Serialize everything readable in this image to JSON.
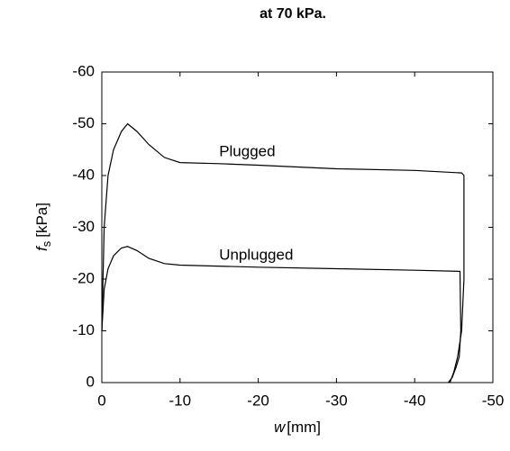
{
  "chart_data": {
    "type": "line",
    "title": "at 70 kPa.",
    "xlabel_symbol": "w",
    "xlabel_unit": "[mm]",
    "ylabel_symbol": "f",
    "ylabel_subscript": "s",
    "ylabel_unit": "[kPa]",
    "xlim": [
      0,
      -50
    ],
    "ylim": [
      0,
      -60
    ],
    "xticks": [
      0,
      -10,
      -20,
      -30,
      -40,
      -50
    ],
    "yticks": [
      0,
      -10,
      -20,
      -30,
      -40,
      -50,
      -60
    ],
    "grid": false,
    "series": [
      {
        "name": "Plugged",
        "color": "#000000",
        "x": [
          0,
          -0.3,
          -0.8,
          -1.5,
          -2.5,
          -3.3,
          -4.5,
          -6,
          -8,
          -10,
          -15,
          -20,
          -30,
          -40,
          -46,
          -46.3,
          -46.3,
          -46,
          -45.5,
          -45,
          -44.5
        ],
        "values": [
          -10,
          -30,
          -40,
          -45,
          -48.5,
          -50,
          -48.5,
          -46,
          -43.5,
          -42.5,
          -42.3,
          -42,
          -41.3,
          -41,
          -40.5,
          -40,
          -20,
          -10,
          -5,
          -2,
          0
        ]
      },
      {
        "name": "Unplugged",
        "color": "#000000",
        "x": [
          0,
          -0.3,
          -0.8,
          -1.5,
          -2.5,
          -3.3,
          -4.5,
          -6,
          -8,
          -10,
          -20,
          -30,
          -40,
          -45.8,
          -45.9,
          -45.7,
          -45.3,
          -44.8,
          -44.3
        ],
        "values": [
          -10,
          -18,
          -22,
          -24.5,
          -26,
          -26.3,
          -25.5,
          -24,
          -23,
          -22.7,
          -22.3,
          -22,
          -21.7,
          -21.5,
          -10,
          -5,
          -3,
          -1,
          0
        ]
      }
    ]
  }
}
